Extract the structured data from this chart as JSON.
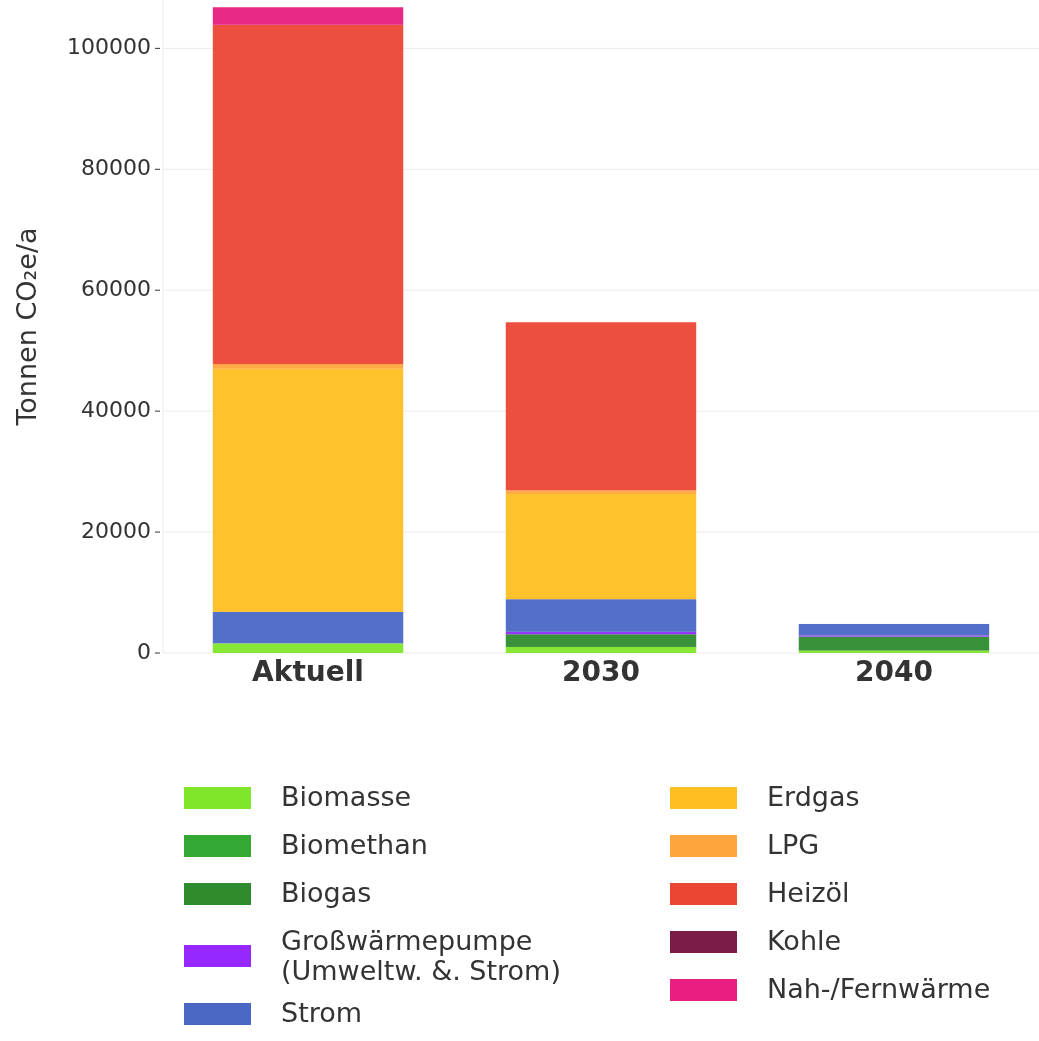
{
  "chart_data": {
    "type": "bar",
    "stacked": true,
    "ylabel": "Tonnen CO₂e/a",
    "categories": [
      "Aktuell",
      "2030",
      "2040"
    ],
    "ylim": [
      0,
      108000
    ],
    "yticks": [
      0,
      20000,
      40000,
      60000,
      80000,
      100000
    ],
    "grid": "y",
    "legend": "bottom",
    "series": [
      {
        "name": "Biomasse",
        "color": "#7fe629",
        "values": [
          1600,
          1000,
          400
        ]
      },
      {
        "name": "Biomethan",
        "color": "#33a833",
        "values": [
          0,
          0,
          0
        ]
      },
      {
        "name": "Biogas",
        "color": "#2e8b2e",
        "values": [
          0,
          2100,
          2300
        ]
      },
      {
        "name": "Großwärmepumpe (Umweltw. &. Strom)",
        "color": "#9428ff",
        "values": [
          0,
          400,
          200
        ]
      },
      {
        "name": "Strom",
        "color": "#4a67c4",
        "values": [
          5200,
          5400,
          1900
        ]
      },
      {
        "name": "Erdgas",
        "color": "#ffbf21",
        "values": [
          40200,
          17400,
          0
        ]
      },
      {
        "name": "LPG",
        "color": "#ffa53d",
        "values": [
          800,
          600,
          0
        ]
      },
      {
        "name": "Heizöl",
        "color": "#eb4634",
        "values": [
          56100,
          27800,
          0
        ]
      },
      {
        "name": "Kohle",
        "color": "#7a1c46",
        "values": [
          0,
          0,
          0
        ]
      },
      {
        "name": "Nah-/Fernwärme",
        "color": "#e81e80",
        "values": [
          2900,
          0,
          0
        ]
      }
    ]
  }
}
